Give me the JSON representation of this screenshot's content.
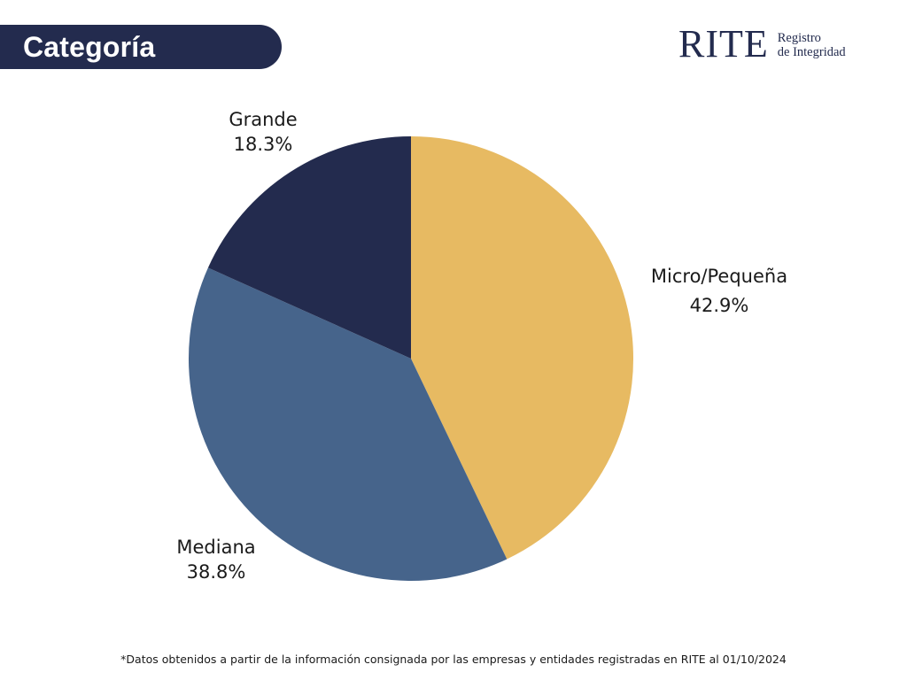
{
  "header": {
    "title": "Categoría"
  },
  "logo": {
    "main": "RITE",
    "sub_line1": "Registro",
    "sub_line2": "de Integridad"
  },
  "colors": {
    "navy": "#232b4e",
    "blue": "#46648b",
    "gold": "#e7ba62"
  },
  "chart_data": {
    "type": "pie",
    "start": "12 o'clock, clockwise",
    "slices": [
      {
        "label": "Micro/Pequeña",
        "value": 42.9,
        "display": "42.9%",
        "color": "#e7ba62"
      },
      {
        "label": "Mediana",
        "value": 38.8,
        "display": "38.8%",
        "color": "#46648b"
      },
      {
        "label": "Grande",
        "value": 18.3,
        "display": "18.3%",
        "color": "#232b4e"
      }
    ]
  },
  "footnote": "*Datos obtenidos a partir de la información consignada por las empresas y entidades registradas en RITE al 01/10/2024"
}
